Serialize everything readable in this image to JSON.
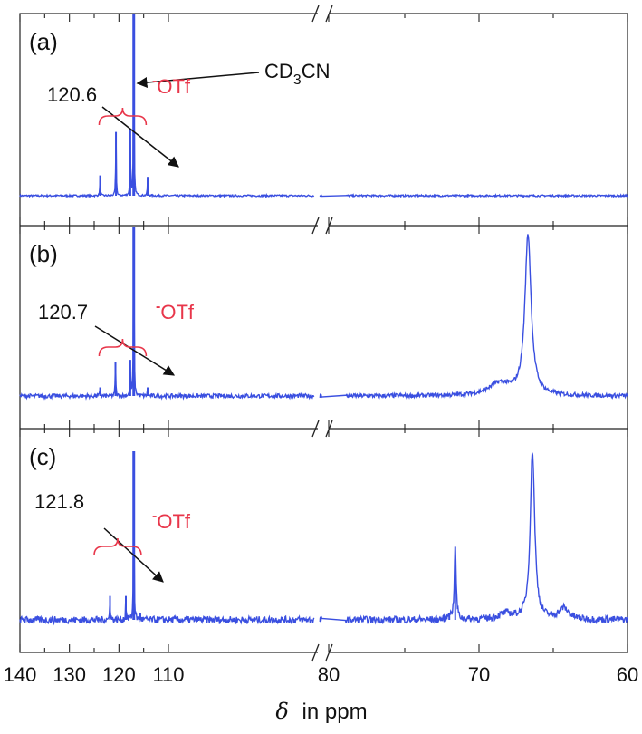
{
  "chart_data": {
    "type": "line",
    "title": "",
    "xlabel": "in ppm",
    "xlabel_symbol": "δ",
    "xaxis": {
      "broken": true,
      "left_segment": {
        "xlim": [
          140,
          80
        ],
        "ticks": [
          140,
          130,
          120,
          110
        ]
      },
      "right_segment": {
        "xlim": [
          80,
          60
        ],
        "ticks": [
          80,
          70,
          60
        ]
      }
    },
    "grid": false,
    "line_color": "#3a4fe0",
    "annotation_color_red": "#e8364a",
    "panels": [
      {
        "label": "(a)",
        "series": [
          {
            "peaks": [
              {
                "x": 123.8,
                "h": 0.14
              },
              {
                "x": 120.6,
                "h": 0.44
              },
              {
                "x": 117.7,
                "h": 0.46
              },
              {
                "x": 117.0,
                "h": 1.25
              },
              {
                "x": 114.2,
                "h": 0.13
              }
            ],
            "noise": 0.006
          }
        ],
        "annotations": [
          {
            "text": "120.6",
            "points_to": 120.6
          },
          {
            "text": "CD",
            "sub": "3",
            "tail": "CN",
            "points_to": 117.0
          },
          {
            "text": "OTf",
            "superscript": "-",
            "bracket": [
              124.0,
              114.5
            ]
          }
        ]
      },
      {
        "label": "(b)",
        "series": [
          {
            "peaks": [
              {
                "x": 123.8,
                "h": 0.05
              },
              {
                "x": 120.7,
                "h": 0.2
              },
              {
                "x": 117.7,
                "h": 0.21
              },
              {
                "x": 117.0,
                "h": 1.15
              },
              {
                "x": 114.2,
                "h": 0.05
              },
              {
                "x": 68.6,
                "h": 0.07,
                "w": 0.9
              },
              {
                "x": 66.7,
                "h": 0.93,
                "w": 0.25
              }
            ],
            "noise": 0.012
          }
        ],
        "annotations": [
          {
            "text": "120.7",
            "points_to": 120.7
          },
          {
            "text": "OTf",
            "superscript": "-",
            "bracket": [
              124.0,
              114.5
            ]
          }
        ]
      },
      {
        "label": "(c)",
        "series": [
          {
            "peaks": [
              {
                "x": 121.8,
                "h": 0.17
              },
              {
                "x": 118.6,
                "h": 0.17
              },
              {
                "x": 117.0,
                "h": 1.2
              },
              {
                "x": 115.7,
                "h": 0.05
              },
              {
                "x": 72.0,
                "h": 0.05
              },
              {
                "x": 71.6,
                "h": 0.52
              },
              {
                "x": 68.2,
                "h": 0.04,
                "w": 0.6
              },
              {
                "x": 66.4,
                "h": 1.2,
                "w": 0.18
              },
              {
                "x": 64.3,
                "h": 0.08,
                "w": 0.4
              }
            ],
            "noise": 0.025
          }
        ],
        "annotations": [
          {
            "text": "121.8",
            "points_to": 121.8
          },
          {
            "text": "OTf",
            "superscript": "-",
            "bracket": [
              125.0,
              115.5
            ]
          }
        ]
      }
    ]
  }
}
